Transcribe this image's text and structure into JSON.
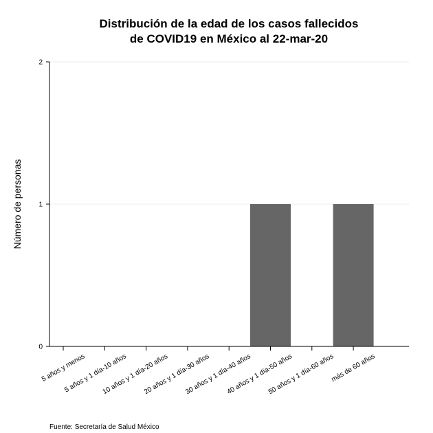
{
  "chart_data": {
    "type": "bar",
    "title_lines": [
      "Distribución de la edad de los casos fallecidos",
      "de COVID19 en México al 22-mar-20"
    ],
    "xlabel": "",
    "ylabel": "Número de personas",
    "caption": "Fuente: Secretaría de Salud México",
    "categories": [
      "5 años y menos",
      "5 años y 1 día-10 años",
      "10 años y 1 día-20 años",
      "20 años y 1 día-30 años",
      "30 años y 1 día-40 años",
      "40 años y 1 día-50 años",
      "50 años y 1 día-60 años",
      "más de 60 años"
    ],
    "values": [
      0,
      0,
      0,
      0,
      0,
      1,
      0,
      1
    ],
    "ylim": [
      0,
      2
    ],
    "yticks": [
      0,
      1,
      2
    ],
    "grid": true,
    "legend": "none",
    "colors": {
      "bar": "#666666",
      "grid": "#ebebeb",
      "axis": "#000000"
    }
  }
}
